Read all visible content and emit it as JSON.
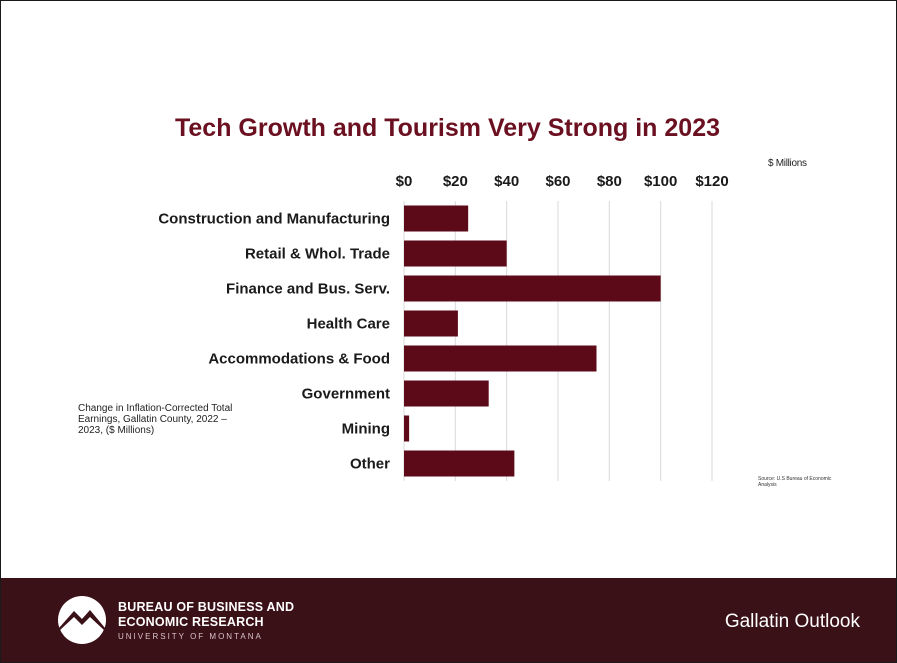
{
  "chart_data": {
    "type": "bar",
    "orientation": "horizontal",
    "title": "Tech Growth and Tourism Very Strong in 2023",
    "units_label": "$ Millions",
    "categories": [
      "Construction and Manufacturing",
      "Retail & Whol. Trade",
      "Finance and Bus. Serv.",
      "Health Care",
      "Accommodations & Food",
      "Government",
      "Mining",
      "Other"
    ],
    "values": [
      25,
      40,
      100,
      21,
      75,
      33,
      2,
      43
    ],
    "x_ticks": [
      "$0",
      "$20",
      "$40",
      "$60",
      "$80",
      "$100",
      "$120"
    ],
    "xlim": [
      0,
      120
    ],
    "grid": true,
    "bar_color": "#5c0a18",
    "note": "Change in Inflation-Corrected Total Earnings, Gallatin County, 2022 – 2023, ($ Millions)",
    "source": "Source: U.S Bureau of Economic Analysis"
  },
  "footer": {
    "org_line1": "BUREAU OF BUSINESS AND",
    "org_line2": "ECONOMIC RESEARCH",
    "org_line3": "UNIVERSITY OF MONTANA",
    "brand": "Gallatin Outlook",
    "logo_icon": "mountain-circle-icon"
  },
  "colors": {
    "title": "#6b1020",
    "footer_bg": "#3b1118"
  }
}
